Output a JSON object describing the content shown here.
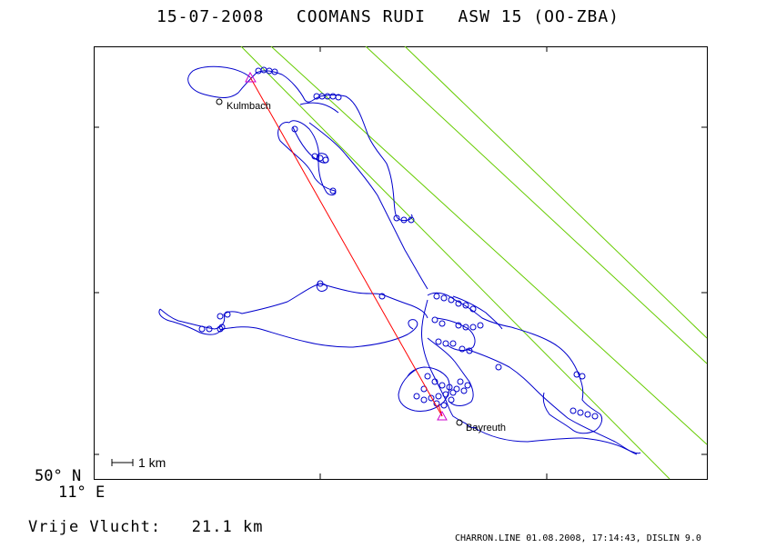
{
  "header": {
    "date": "15-07-2008",
    "pilot": "COOMANS RUDI",
    "glider": "ASW 15 (OO-ZBA)"
  },
  "map": {
    "colors": {
      "track": "#0000cc",
      "task": "#ff0000",
      "start_marker": "#cc00cc",
      "airspace": "#66cc00",
      "frame": "#000000"
    },
    "places": [
      {
        "name": "Kulmbach"
      },
      {
        "name": "Bayreuth"
      }
    ],
    "scale_label": "1 km",
    "lat_label": "50° N",
    "lon_label": "11° E"
  },
  "summary": {
    "label": "Vrije Vlucht:",
    "distance": "21.1 km"
  },
  "footer": "CHARRON.LINE 01.08.2008, 17:14:43, DISLIN 9.0"
}
